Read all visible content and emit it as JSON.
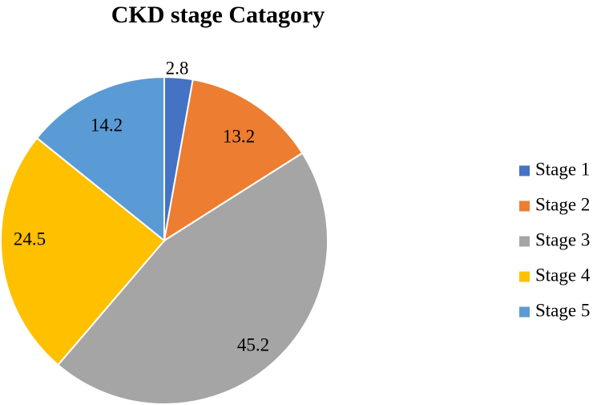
{
  "chart_data": {
    "type": "pie",
    "title": "CKD stage Catagory",
    "categories": [
      "Stage 1",
      "Stage 2",
      "Stage 3",
      "Stage 4",
      "Stage 5"
    ],
    "values": [
      2.8,
      13.2,
      45.2,
      24.5,
      14.2
    ],
    "data_labels": [
      "2.8",
      "13.2",
      "45.2",
      "24.5",
      "14.2"
    ],
    "colors": [
      "#4472C4",
      "#ED7D31",
      "#A5A5A5",
      "#FFC000",
      "#5B9BD5"
    ],
    "start_angle": "12 o'clock",
    "direction": "clockwise",
    "legend": {
      "position": "right",
      "entries": [
        "Stage 1",
        "Stage 2",
        "Stage 3",
        "Stage 4",
        "Stage 5"
      ]
    }
  }
}
